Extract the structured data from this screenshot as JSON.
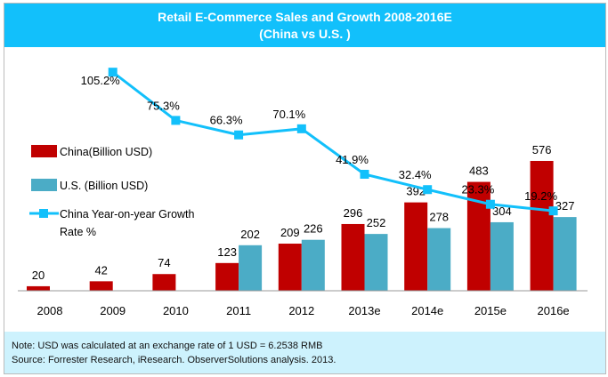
{
  "chart_data": {
    "type": "bar",
    "title": "Retail E-Commerce Sales and Growth 2008-2016E",
    "subtitle": "(China vs U.S.  )",
    "categories": [
      "2008",
      "2009",
      "2010",
      "2011",
      "2012",
      "2013e",
      "2014e",
      "2015e",
      "2016e"
    ],
    "series": [
      {
        "name": "China(Billion USD)",
        "type": "bar",
        "color": "#c00000",
        "values": [
          20,
          42,
          74,
          123,
          209,
          296,
          392,
          483,
          576
        ]
      },
      {
        "name": "U.S. (Billion USD)",
        "type": "bar",
        "color": "#4bacc6",
        "values": [
          null,
          null,
          null,
          202,
          226,
          252,
          278,
          304,
          327
        ]
      },
      {
        "name": "China Year-on-year Growth Rate %",
        "type": "line",
        "color": "#12c0fb",
        "marker": "square",
        "values": [
          null,
          105.2,
          75.3,
          66.3,
          70.1,
          41.9,
          32.4,
          23.3,
          19.2
        ],
        "labels": [
          "",
          "105.2%",
          "75.3%",
          "66.3%",
          "70.1%",
          "41.9%",
          "32.4%",
          "23.3%",
          "19.2%"
        ]
      }
    ],
    "legend_placement": "left",
    "grid": false
  },
  "legend": {
    "china": "China(Billion USD)",
    "us": "U.S. (Billion USD)",
    "growth_line1": "China Year-on-year Growth",
    "growth_line2": "Rate %"
  },
  "footer": {
    "note": "Note: USD was calculated at an exchange rate of 1 USD = 6.2538 RMB",
    "source": "Source: Forrester Research, iResearch. ObserverSolutions analysis. 2013."
  }
}
